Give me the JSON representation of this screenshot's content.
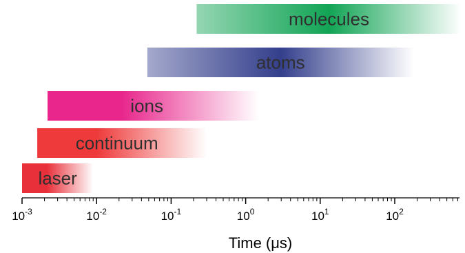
{
  "chart_data": {
    "type": "bar",
    "orientation": "horizontal",
    "xscale": "log",
    "xlim": [
      0.001,
      800
    ],
    "xlabel": "Time (μs)",
    "x_ticks": [
      {
        "base": "10",
        "exp": "-3"
      },
      {
        "base": "10",
        "exp": "-2"
      },
      {
        "base": "10",
        "exp": "-1"
      },
      {
        "base": "10",
        "exp": "0"
      },
      {
        "base": "10",
        "exp": "1"
      },
      {
        "base": "10",
        "exp": "2"
      }
    ],
    "bars": [
      {
        "label": "laser",
        "start": 0.001,
        "end": 0.009,
        "color": "#e8303a",
        "fade": "end"
      },
      {
        "label": "continuum",
        "start": 0.0016,
        "end": 0.3,
        "color": "#ee3a3a",
        "fade": "end"
      },
      {
        "label": "ions",
        "start": 0.0022,
        "end": 1.5,
        "color": "#e8268c",
        "fade": "end"
      },
      {
        "label": "atoms",
        "start": 0.048,
        "end": 180,
        "color": "#343f8c",
        "fade": "both"
      },
      {
        "label": "molecules",
        "start": 0.22,
        "end": 780,
        "color": "#12a455",
        "fade": "both"
      }
    ],
    "grid": false,
    "legend": "none"
  }
}
